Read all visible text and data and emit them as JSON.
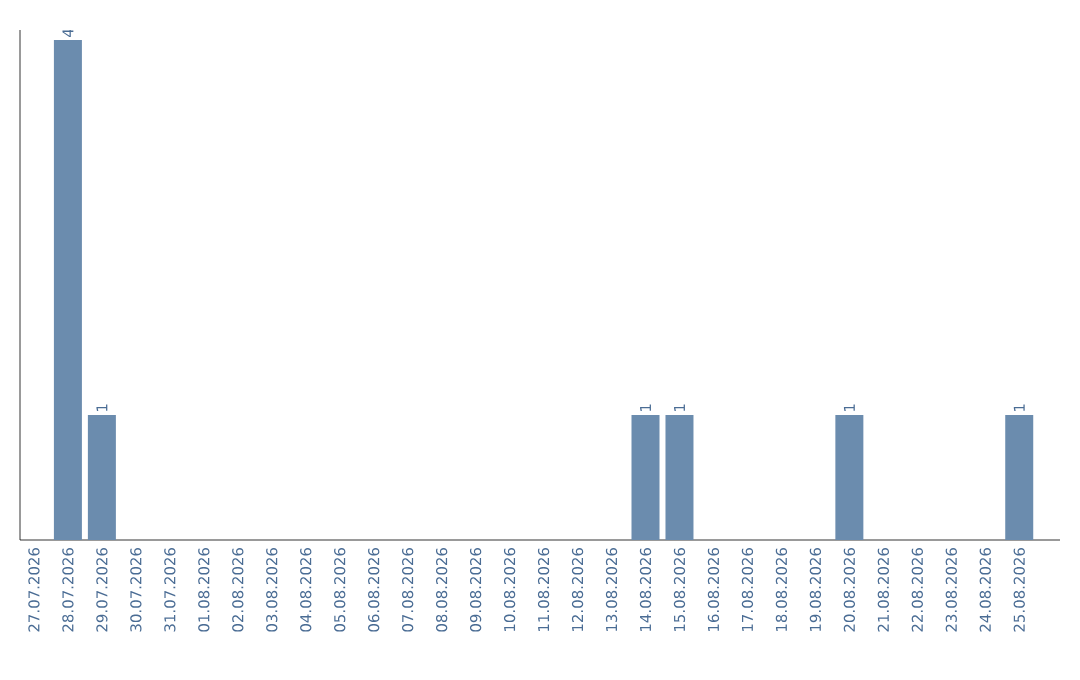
{
  "chart_data": {
    "type": "bar",
    "categories": [
      "27.07.2026",
      "28.07.2026",
      "29.07.2026",
      "30.07.2026",
      "31.07.2026",
      "01.08.2026",
      "02.08.2026",
      "03.08.2026",
      "04.08.2026",
      "05.08.2026",
      "06.08.2026",
      "07.08.2026",
      "08.08.2026",
      "09.08.2026",
      "10.08.2026",
      "11.08.2026",
      "12.08.2026",
      "13.08.2026",
      "14.08.2026",
      "15.08.2026",
      "16.08.2026",
      "17.08.2026",
      "18.08.2026",
      "19.08.2026",
      "20.08.2026",
      "21.08.2026",
      "22.08.2026",
      "23.08.2026",
      "24.08.2026",
      "25.08.2026"
    ],
    "values": [
      0,
      4,
      1,
      0,
      0,
      0,
      0,
      0,
      0,
      0,
      0,
      0,
      0,
      0,
      0,
      0,
      0,
      0,
      1,
      1,
      0,
      0,
      0,
      0,
      1,
      0,
      0,
      0,
      0,
      1
    ],
    "value_labels": [
      null,
      "4",
      "1",
      null,
      null,
      null,
      null,
      null,
      null,
      null,
      null,
      null,
      null,
      null,
      null,
      null,
      null,
      null,
      "1",
      "1",
      null,
      null,
      null,
      null,
      "1",
      null,
      null,
      null,
      null,
      "1"
    ],
    "color": "#6b8cae",
    "tick_labels": "x"
  }
}
